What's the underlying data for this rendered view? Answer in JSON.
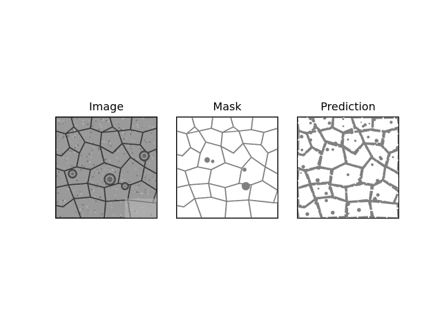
{
  "figure": {
    "panels": [
      {
        "title": "Image"
      },
      {
        "title": "Mask"
      },
      {
        "title": "Prediction"
      }
    ]
  },
  "colors": {
    "background": "#ffffff",
    "frame": "#000000",
    "membrane": "#808080",
    "em_base": "#9a9a9a",
    "em_dark": "#3a3a3a"
  }
}
